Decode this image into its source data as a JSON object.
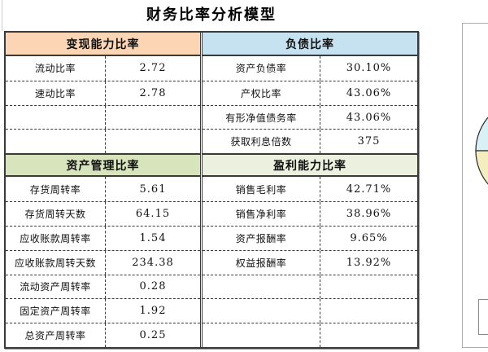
{
  "title": "财务比率分析模型",
  "colors": {
    "border_dark": "#3a3a3a",
    "panel_border": "#adadad",
    "pie_top_slice": "#d9f1f5",
    "pie_bottom_slice": "#f3edc0",
    "pie_outline": "#333333"
  },
  "table": {
    "left_half": {
      "sections": [
        {
          "header": "变现能力比率",
          "header_bg": "#fbd5b4",
          "rows": [
            {
              "label": "流动比率",
              "value": "2.72"
            },
            {
              "label": "速动比率",
              "value": "2.78"
            },
            {
              "label": "",
              "value": ""
            },
            {
              "label": "",
              "value": ""
            }
          ]
        },
        {
          "header": "资产管理比率",
          "header_bg": "#d7e4bc",
          "rows": [
            {
              "label": "存货周转率",
              "value": "5.61"
            },
            {
              "label": "存货周转天数",
              "value": "64.15"
            },
            {
              "label": "应收账款周转率",
              "value": "1.54"
            },
            {
              "label": "应收账款周转天数",
              "value": "234.38"
            },
            {
              "label": "流动资产周转率",
              "value": "0.28"
            },
            {
              "label": "固定资产周转率",
              "value": "1.92"
            },
            {
              "label": "总资产周转率",
              "value": "0.25"
            }
          ]
        }
      ]
    },
    "right_half": {
      "sections": [
        {
          "header": "负债比率",
          "header_bg": "#c6e2f0",
          "rows": [
            {
              "label": "资产负债率",
              "value": "30.10%"
            },
            {
              "label": "产权比率",
              "value": "43.06%"
            },
            {
              "label": "有形净值债务率",
              "value": "43.06%"
            },
            {
              "label": "获取利息倍数",
              "value": "375"
            }
          ]
        },
        {
          "header": "盈利能力比率",
          "header_bg": "#ebf1de",
          "rows": [
            {
              "label": "销售毛利率",
              "value": "42.71%"
            },
            {
              "label": "销售净利率",
              "value": "38.96%"
            },
            {
              "label": "资产报酬率",
              "value": "9.65%"
            },
            {
              "label": "权益报酬率",
              "value": "13.92%"
            },
            {
              "label": "",
              "value": ""
            },
            {
              "label": "",
              "value": ""
            },
            {
              "label": "",
              "value": ""
            }
          ]
        }
      ]
    }
  }
}
